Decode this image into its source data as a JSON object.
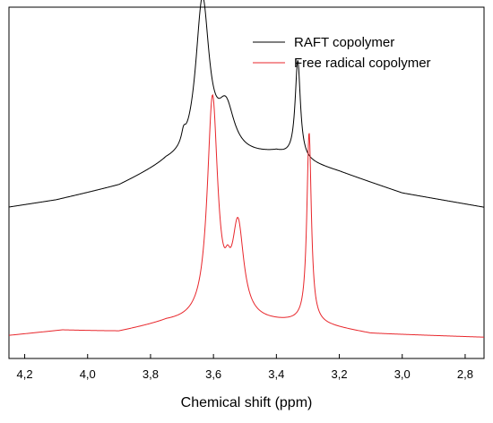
{
  "chart_data": {
    "type": "line",
    "xlabel": "Chemical shift (ppm)",
    "ylabel": "",
    "xlim": [
      4.25,
      2.74
    ],
    "x_reversed": true,
    "y_ticks_shown": false,
    "grid": false,
    "legend_position": "top-right",
    "x_ticks": [
      4.2,
      4.0,
      3.8,
      3.6,
      3.4,
      3.2,
      3.0,
      2.8
    ],
    "x_tick_labels": [
      "4,2",
      "4,0",
      "3,8",
      "3,6",
      "3,4",
      "3,2",
      "3,0",
      "2,8"
    ],
    "series": [
      {
        "name": "RAFT copolymer",
        "color": "#000000",
        "baseline": [
          [
            4.25,
            0.43
          ],
          [
            4.1,
            0.45
          ],
          [
            3.9,
            0.49
          ],
          [
            3.75,
            0.55
          ],
          [
            3.4,
            0.58
          ],
          [
            3.2,
            0.53
          ],
          [
            3.0,
            0.47
          ],
          [
            2.74,
            0.43
          ]
        ],
        "peaks": [
          {
            "x": 3.635,
            "height": 0.45,
            "width": 0.026
          },
          {
            "x": 3.56,
            "height": 0.13,
            "width": 0.032
          },
          {
            "x": 3.695,
            "height": 0.03,
            "width": 0.008
          },
          {
            "x": 3.332,
            "height": 0.28,
            "width": 0.01
          }
        ]
      },
      {
        "name": "Free radical copolymer",
        "color": "#e8262b",
        "baseline": [
          [
            4.25,
            0.065
          ],
          [
            4.08,
            0.08
          ],
          [
            3.9,
            0.075
          ],
          [
            3.75,
            0.1
          ],
          [
            3.3,
            0.1
          ],
          [
            3.1,
            0.07
          ],
          [
            2.74,
            0.06
          ]
        ],
        "peaks": [
          {
            "x": 3.603,
            "height": 0.63,
            "width": 0.02
          },
          {
            "x": 3.522,
            "height": 0.26,
            "width": 0.022
          },
          {
            "x": 3.555,
            "height": 0.05,
            "width": 0.01
          },
          {
            "x": 3.296,
            "height": 0.54,
            "width": 0.0085
          }
        ]
      }
    ]
  }
}
